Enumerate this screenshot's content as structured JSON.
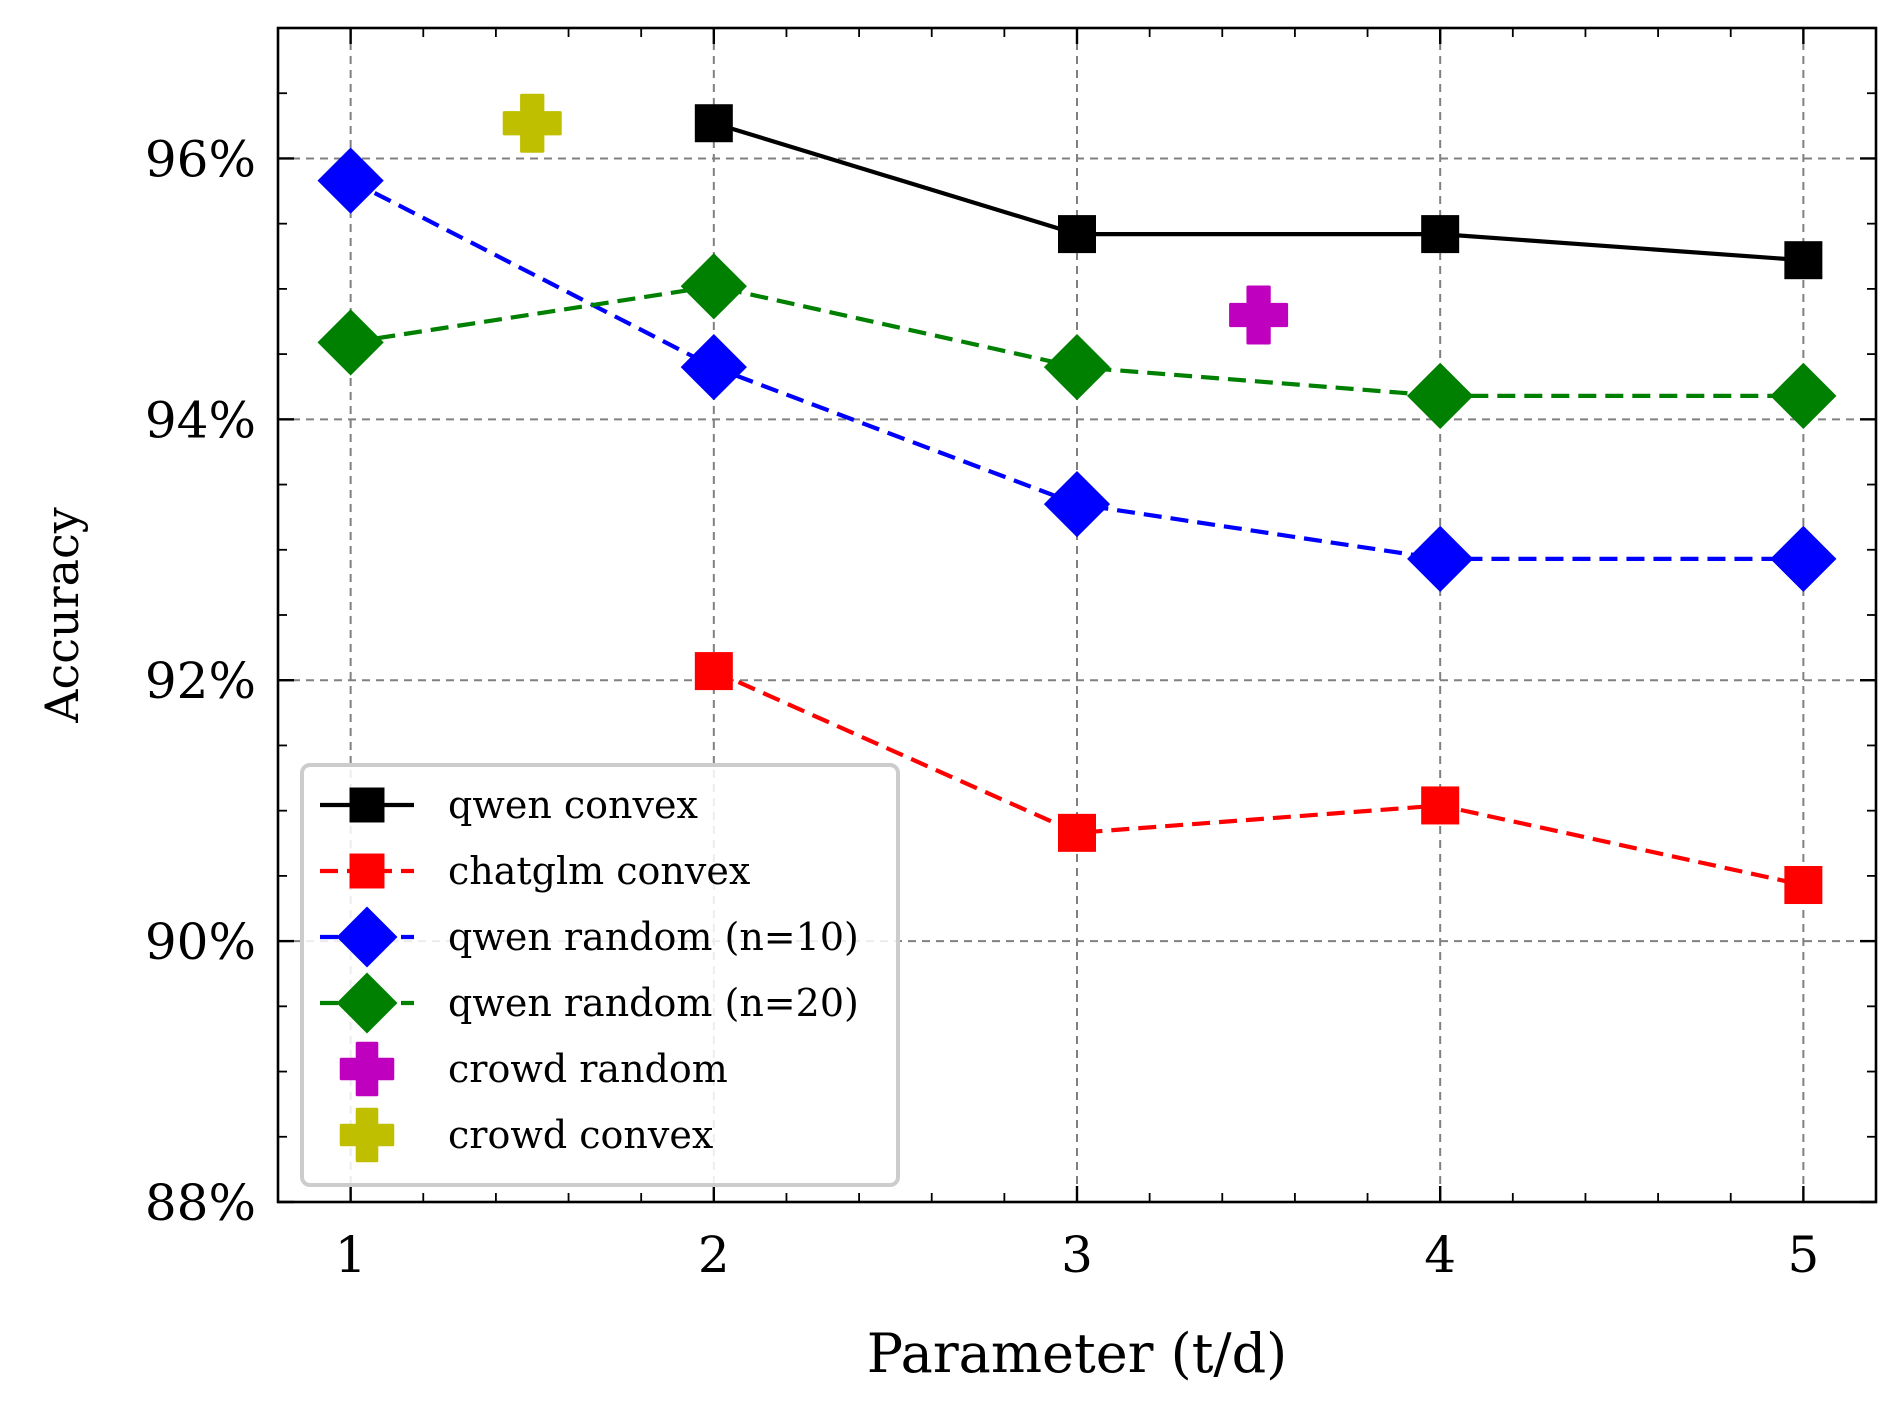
{
  "chart_data": {
    "type": "line",
    "title": "",
    "xlabel": "Parameter (t/d)",
    "ylabel": "Accuracy",
    "xlim": [
      0.8,
      5.2
    ],
    "ylim": [
      88,
      97
    ],
    "xticks": [
      1,
      2,
      3,
      4,
      5
    ],
    "yticks": [
      88,
      90,
      92,
      94,
      96
    ],
    "ytick_labels": [
      "88%",
      "90%",
      "92%",
      "94%",
      "96%"
    ],
    "grid": true,
    "legend_position": "lower-left",
    "series": [
      {
        "name": "qwen convex",
        "color": "#000000",
        "marker": "square",
        "line": "solid",
        "x": [
          2,
          3,
          4,
          5
        ],
        "values": [
          96.27,
          95.42,
          95.42,
          95.22
        ]
      },
      {
        "name": "chatglm convex",
        "color": "#ff0000",
        "marker": "square",
        "line": "dashed",
        "x": [
          2,
          3,
          4,
          5
        ],
        "values": [
          92.07,
          90.83,
          91.04,
          90.43
        ]
      },
      {
        "name": "qwen random (n=10)",
        "color": "#0000ff",
        "marker": "diamond",
        "line": "dashed",
        "x": [
          1,
          2,
          3,
          4,
          5
        ],
        "values": [
          95.83,
          94.4,
          93.35,
          92.93,
          92.93
        ]
      },
      {
        "name": "qwen random (n=20)",
        "color": "#008000",
        "marker": "diamond",
        "line": "dashed",
        "x": [
          1,
          2,
          3,
          4,
          5
        ],
        "values": [
          94.59,
          95.02,
          94.4,
          94.18,
          94.18
        ]
      },
      {
        "name": "crowd random",
        "color": "#bf00bf",
        "marker": "plus",
        "line": "none",
        "x": [
          3.5
        ],
        "values": [
          94.8
        ]
      },
      {
        "name": "crowd convex",
        "color": "#bfbf00",
        "marker": "plus",
        "line": "none",
        "x": [
          1.5
        ],
        "values": [
          96.27
        ]
      }
    ]
  }
}
